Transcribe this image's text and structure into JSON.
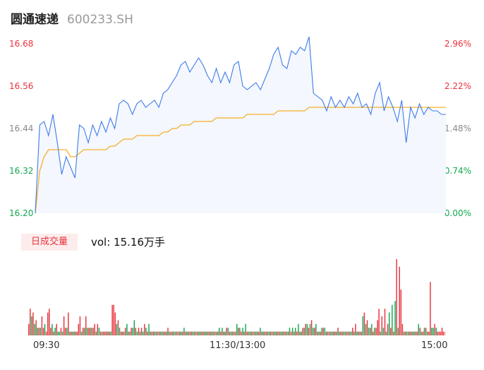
{
  "header": {
    "name": "圆通速递",
    "code": "600233.SH"
  },
  "chart_data": {
    "type": "line",
    "series": [
      {
        "values": [
          16.2,
          16.45,
          16.46,
          16.42,
          16.48,
          16.4,
          16.31,
          16.36,
          16.33,
          16.3,
          16.45,
          16.44,
          16.4,
          16.45,
          16.42,
          16.46,
          16.43,
          16.47,
          16.44,
          16.51,
          16.52,
          16.51,
          16.48,
          16.51,
          16.52,
          16.5,
          16.51,
          16.52,
          16.5,
          16.54,
          16.55,
          16.57,
          16.59,
          16.62,
          16.63,
          16.6,
          16.62,
          16.64,
          16.62,
          16.59,
          16.57,
          16.61,
          16.57,
          16.6,
          16.57,
          16.62,
          16.63,
          16.56,
          16.55,
          16.56,
          16.57,
          16.55,
          16.58,
          16.61,
          16.65,
          16.67,
          16.62,
          16.61,
          16.66,
          16.65,
          16.67,
          16.66,
          16.7,
          16.54,
          16.53,
          16.52,
          16.49,
          16.53,
          16.5,
          16.52,
          16.5,
          16.53,
          16.51,
          16.54,
          16.5,
          16.51,
          16.48,
          16.54,
          16.57,
          16.49,
          16.53,
          16.5,
          16.46,
          16.52,
          16.4,
          16.5,
          16.47,
          16.51,
          16.48,
          16.5,
          16.49,
          16.49,
          16.48,
          16.48
        ]
      },
      {
        "values": [
          16.2,
          16.32,
          16.36,
          16.38,
          16.38,
          16.38,
          16.38,
          16.38,
          16.36,
          16.36,
          16.37,
          16.38,
          16.38,
          16.38,
          16.38,
          16.38,
          16.38,
          16.39,
          16.39,
          16.4,
          16.41,
          16.41,
          16.41,
          16.42,
          16.42,
          16.42,
          16.42,
          16.42,
          16.42,
          16.43,
          16.43,
          16.44,
          16.44,
          16.45,
          16.45,
          16.45,
          16.46,
          16.46,
          16.46,
          16.46,
          16.46,
          16.47,
          16.47,
          16.47,
          16.47,
          16.47,
          16.47,
          16.47,
          16.48,
          16.48,
          16.48,
          16.48,
          16.48,
          16.48,
          16.48,
          16.49,
          16.49,
          16.49,
          16.49,
          16.49,
          16.49,
          16.49,
          16.5,
          16.5,
          16.5,
          16.5,
          16.5,
          16.5,
          16.5,
          16.5,
          16.5,
          16.5,
          16.5,
          16.5,
          16.5,
          16.5,
          16.5,
          16.5,
          16.5,
          16.5,
          16.5,
          16.5,
          16.5,
          16.5,
          16.5,
          16.5,
          16.5,
          16.5,
          16.5,
          16.5,
          16.5,
          16.5,
          16.5,
          16.5
        ]
      }
    ],
    "ylim": [
      16.2,
      16.68
    ],
    "y_ticks": [
      "16.68",
      "16.56",
      "16.44",
      "16.32",
      "16.20"
    ],
    "y2_ticks": [
      "2.96%",
      "2.22%",
      "1.48%",
      "0.74%",
      "0.00%"
    ],
    "x_ticks": [
      "09:30",
      "11:30/13:00",
      "15:00"
    ],
    "volume": {
      "tab_label": "日成交量",
      "label": "vol: 15.16万手",
      "values": [
        3,
        7,
        5,
        6,
        3,
        4,
        2,
        2,
        2,
        5,
        2,
        3,
        1,
        6,
        7,
        2,
        3,
        1,
        2,
        3,
        1,
        1,
        2,
        1,
        5,
        2,
        2,
        6,
        1,
        1,
        1,
        1,
        1,
        1,
        3,
        5,
        1,
        2,
        2,
        5,
        2,
        2,
        2,
        2,
        2,
        3,
        1,
        3,
        2,
        1,
        1,
        1,
        1,
        1,
        1,
        1,
        1,
        8,
        8,
        6,
        3,
        4,
        2,
        1,
        1,
        1,
        2,
        3,
        1,
        1,
        2,
        2,
        4,
        2,
        1,
        2,
        1,
        2,
        1,
        3,
        2,
        1,
        3,
        1,
        1,
        1,
        1,
        1,
        1,
        1,
        1,
        1,
        1,
        1,
        1,
        2,
        1,
        1,
        1,
        1,
        1,
        1,
        1,
        1,
        1,
        1,
        2,
        1,
        1,
        1,
        1,
        1,
        1,
        1,
        1,
        1,
        1,
        1,
        1,
        1,
        1,
        1,
        1,
        1,
        1,
        1,
        1,
        1,
        1,
        1,
        2,
        1,
        2,
        1,
        1,
        2,
        2,
        1,
        1,
        1,
        1,
        1,
        3,
        2,
        2,
        1,
        2,
        1,
        3,
        1,
        1,
        1,
        1,
        1,
        1,
        1,
        1,
        1,
        2,
        1,
        1,
        1,
        1,
        1,
        1,
        1,
        1,
        1,
        1,
        1,
        1,
        1,
        1,
        1,
        1,
        1,
        1,
        1,
        2,
        1,
        2,
        1,
        2,
        1,
        3,
        1,
        1,
        2,
        2,
        3,
        3,
        2,
        3,
        4,
        2,
        2,
        3,
        1,
        1,
        1,
        2,
        2,
        2,
        1,
        1,
        1,
        1,
        1,
        1,
        1,
        1,
        2,
        1,
        1,
        1,
        1,
        1,
        1,
        1,
        1,
        1,
        2,
        1,
        3,
        1,
        1,
        1,
        1,
        5,
        6,
        3,
        4,
        2,
        2,
        3,
        1,
        2,
        2,
        4,
        7,
        1,
        5,
        2,
        7,
        1,
        3,
        6,
        2,
        8,
        1,
        9,
        20,
        2,
        18,
        12,
        3,
        1,
        1,
        1,
        1,
        1,
        1,
        1,
        1,
        1,
        1,
        3,
        2,
        1,
        1,
        2,
        2,
        1,
        1,
        14,
        2,
        2,
        3,
        2,
        1,
        1,
        1,
        2,
        1,
        1
      ],
      "colors": [
        "r",
        "r",
        "g",
        "r",
        "g",
        "r",
        "g",
        "r",
        "g",
        "r",
        "r",
        "g",
        "r",
        "r",
        "r",
        "r",
        "g",
        "r",
        "g",
        "r",
        "g",
        "g",
        "r",
        "g",
        "r",
        "r",
        "g",
        "r",
        "g",
        "r",
        "g",
        "r",
        "g",
        "r",
        "r",
        "r",
        "g",
        "r",
        "g",
        "r",
        "g",
        "r",
        "r",
        "g",
        "r",
        "r",
        "g",
        "r",
        "g",
        "r",
        "g",
        "r",
        "r",
        "r",
        "g",
        "r",
        "g",
        "r",
        "r",
        "r",
        "g",
        "r",
        "g",
        "r",
        "r",
        "g",
        "r",
        "g",
        "r",
        "g",
        "r",
        "g",
        "g",
        "r",
        "g",
        "r",
        "g",
        "r",
        "g",
        "r",
        "g",
        "r",
        "g",
        "r",
        "g",
        "r",
        "g",
        "r",
        "g",
        "r",
        "g",
        "r",
        "g",
        "r",
        "g",
        "r",
        "g",
        "r",
        "g",
        "r",
        "g",
        "r",
        "g",
        "r",
        "g",
        "r",
        "g",
        "r",
        "g",
        "r",
        "g",
        "r",
        "g",
        "r",
        "g",
        "r",
        "g",
        "r",
        "g",
        "r",
        "g",
        "r",
        "g",
        "r",
        "g",
        "r",
        "g",
        "r",
        "g",
        "r",
        "g",
        "r",
        "g",
        "r",
        "g",
        "r",
        "g",
        "r",
        "g",
        "r",
        "g",
        "r",
        "g",
        "r",
        "g",
        "r",
        "g",
        "r",
        "g",
        "r",
        "g",
        "r",
        "g",
        "r",
        "g",
        "r",
        "g",
        "r",
        "g",
        "r",
        "g",
        "r",
        "g",
        "r",
        "g",
        "r",
        "g",
        "r",
        "g",
        "r",
        "g",
        "r",
        "g",
        "r",
        "g",
        "r",
        "g",
        "r",
        "g",
        "r",
        "g",
        "r",
        "g",
        "r",
        "g",
        "r",
        "g",
        "r",
        "g",
        "r",
        "g",
        "r",
        "g",
        "r",
        "g",
        "r",
        "g",
        "r",
        "g",
        "r",
        "g",
        "r",
        "g",
        "r",
        "g",
        "r",
        "g",
        "r",
        "g",
        "r",
        "g",
        "r",
        "g",
        "r",
        "g",
        "r",
        "g",
        "r",
        "g",
        "r",
        "g",
        "r",
        "g",
        "r",
        "g",
        "r",
        "g",
        "r",
        "g",
        "r",
        "g",
        "r",
        "g",
        "r",
        "g",
        "r",
        "g",
        "r",
        "r",
        "r",
        "g",
        "r",
        "g",
        "r",
        "g",
        "r",
        "g",
        "r",
        "g",
        "r",
        "g",
        "r",
        "g",
        "r",
        "r",
        "r",
        "g",
        "r",
        "g",
        "r",
        "g",
        "r",
        "g",
        "r",
        "g",
        "r",
        "g",
        "r",
        "g",
        "r",
        "g",
        "r",
        "g",
        "r",
        "r",
        "g",
        "g",
        "r",
        "g"
      ]
    },
    "colors": {
      "price": "#3d7bea",
      "avg": "#f5b02a",
      "up": "#e8323c",
      "down": "#11a84f",
      "fill": "#f4f7fd",
      "last_bar": "#f3a5a5"
    }
  }
}
